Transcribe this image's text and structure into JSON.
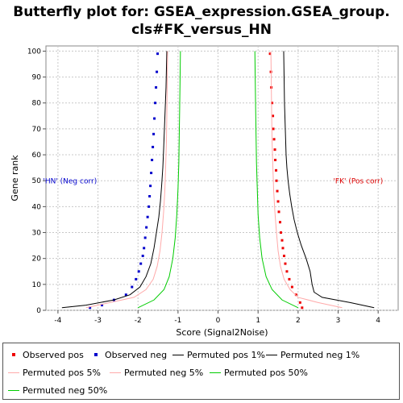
{
  "chart_data": {
    "type": "line",
    "title_lines": [
      "Butterfly plot for: GSEA_expression.GSEA_group.",
      "cls#FK_versus_HN"
    ],
    "xlabel": "Score (Signal2Noise)",
    "ylabel": "Gene rank",
    "xlim": [
      -4.3,
      4.5
    ],
    "ylim": [
      0,
      102
    ],
    "xticks": [
      -4,
      -3,
      -2,
      -1,
      0,
      1,
      2,
      3,
      4
    ],
    "yticks": [
      0,
      10,
      20,
      30,
      40,
      50,
      60,
      70,
      80,
      90,
      100
    ],
    "grid": true,
    "legend_position": "bottom",
    "annotations": [
      {
        "text": "'HN' (Neg corr)",
        "x": -3.7,
        "y": 49,
        "color": "#0000cc"
      },
      {
        "text": "'FK' (Pos corr)",
        "x": 3.5,
        "y": 49,
        "color": "#dd0000"
      }
    ],
    "series": [
      {
        "name": "Observed pos",
        "style": "points",
        "color": "#ee0000",
        "x": [
          2.1,
          2.05,
          1.95,
          1.85,
          1.78,
          1.72,
          1.68,
          1.65,
          1.62,
          1.6,
          1.57,
          1.55,
          1.52,
          1.5,
          1.48,
          1.46,
          1.45,
          1.43,
          1.42,
          1.4,
          1.38,
          1.37,
          1.35,
          1.33,
          1.32,
          1.3
        ],
        "y": [
          1,
          3,
          6,
          9,
          12,
          15,
          18,
          21,
          24,
          27,
          30,
          34,
          38,
          42,
          46,
          50,
          54,
          58,
          62,
          66,
          70,
          75,
          80,
          86,
          92,
          99
        ]
      },
      {
        "name": "Observed neg",
        "style": "points",
        "color": "#0000cc",
        "x": [
          -3.2,
          -2.9,
          -2.6,
          -2.3,
          -2.15,
          -2.05,
          -1.98,
          -1.93,
          -1.88,
          -1.85,
          -1.82,
          -1.79,
          -1.76,
          -1.73,
          -1.71,
          -1.69,
          -1.67,
          -1.65,
          -1.63,
          -1.61,
          -1.59,
          -1.57,
          -1.55,
          -1.53,
          -1.51
        ],
        "y": [
          1,
          2,
          4,
          6,
          9,
          12,
          15,
          18,
          21,
          24,
          28,
          32,
          36,
          40,
          44,
          48,
          53,
          58,
          63,
          68,
          74,
          80,
          86,
          92,
          99
        ]
      },
      {
        "name": "Permuted pos 1%",
        "style": "line",
        "color": "#000000",
        "x": [
          3.9,
          3.3,
          2.6,
          2.4,
          2.35,
          2.3,
          2.2,
          2.08,
          1.98,
          1.9,
          1.84,
          1.79,
          1.75,
          1.72,
          1.7,
          1.68,
          1.66,
          1.65,
          1.64
        ],
        "y": [
          1,
          3,
          5,
          7,
          10,
          15,
          20,
          25,
          30,
          35,
          40,
          45,
          50,
          55,
          60,
          70,
          80,
          90,
          100
        ]
      },
      {
        "name": "Permuted neg 1%",
        "style": "line",
        "color": "#000000",
        "x": [
          -3.9,
          -3.3,
          -2.6,
          -2.2,
          -1.95,
          -1.8,
          -1.68,
          -1.6,
          -1.54,
          -1.48,
          -1.44,
          -1.41,
          -1.38,
          -1.36,
          -1.34,
          -1.32,
          -1.3,
          -1.29,
          -1.28
        ],
        "y": [
          1,
          2,
          4,
          6,
          9,
          13,
          18,
          24,
          30,
          36,
          42,
          48,
          55,
          62,
          70,
          78,
          86,
          93,
          100
        ]
      },
      {
        "name": "Permuted pos 5%",
        "style": "line",
        "color": "#ffaaaa",
        "x": [
          3.1,
          2.5,
          2.0,
          1.8,
          1.65,
          1.56,
          1.5,
          1.46,
          1.42,
          1.39,
          1.37,
          1.35,
          1.34,
          1.33,
          1.32
        ],
        "y": [
          1,
          3,
          5,
          8,
          12,
          17,
          23,
          30,
          38,
          46,
          55,
          65,
          75,
          88,
          100
        ]
      },
      {
        "name": "Permuted neg 5%",
        "style": "line",
        "color": "#ffaaaa",
        "x": [
          -3.3,
          -2.7,
          -2.1,
          -1.8,
          -1.62,
          -1.52,
          -1.45,
          -1.4,
          -1.36,
          -1.33,
          -1.31,
          -1.29,
          -1.28,
          -1.27,
          -1.26
        ],
        "y": [
          1,
          3,
          5,
          8,
          12,
          17,
          23,
          30,
          38,
          46,
          55,
          65,
          75,
          88,
          100
        ]
      },
      {
        "name": "Permuted pos 50%",
        "style": "line",
        "color": "#00cc00",
        "x": [
          2.0,
          1.6,
          1.35,
          1.2,
          1.1,
          1.04,
          1.0,
          0.98,
          0.96,
          0.95,
          0.94,
          0.93,
          0.92
        ],
        "y": [
          1,
          4,
          8,
          13,
          20,
          28,
          37,
          47,
          57,
          67,
          77,
          88,
          100
        ]
      },
      {
        "name": "Permuted neg 50%",
        "style": "line",
        "color": "#00cc00",
        "x": [
          -2.0,
          -1.6,
          -1.35,
          -1.22,
          -1.13,
          -1.07,
          -1.03,
          -1.0,
          -0.98,
          -0.97,
          -0.96,
          -0.95,
          -0.94
        ],
        "y": [
          1,
          4,
          8,
          13,
          20,
          28,
          37,
          47,
          57,
          67,
          77,
          88,
          100
        ]
      }
    ]
  },
  "legend": {
    "items": [
      {
        "label": "Observed pos",
        "kind": "dot",
        "color": "#ee0000"
      },
      {
        "label": "Observed neg",
        "kind": "dot",
        "color": "#0000cc"
      },
      {
        "label": "Permuted pos 1%",
        "kind": "line",
        "color": "#000000"
      },
      {
        "label": "Permuted neg 1%",
        "kind": "line",
        "color": "#000000"
      },
      {
        "label": "Permuted pos 5%",
        "kind": "line",
        "color": "#ffaaaa"
      },
      {
        "label": "Permuted neg 5%",
        "kind": "line",
        "color": "#ffaaaa"
      },
      {
        "label": "Permuted pos 50%",
        "kind": "line",
        "color": "#00cc00"
      },
      {
        "label": "Permuted neg 50%",
        "kind": "line",
        "color": "#00cc00"
      }
    ]
  }
}
